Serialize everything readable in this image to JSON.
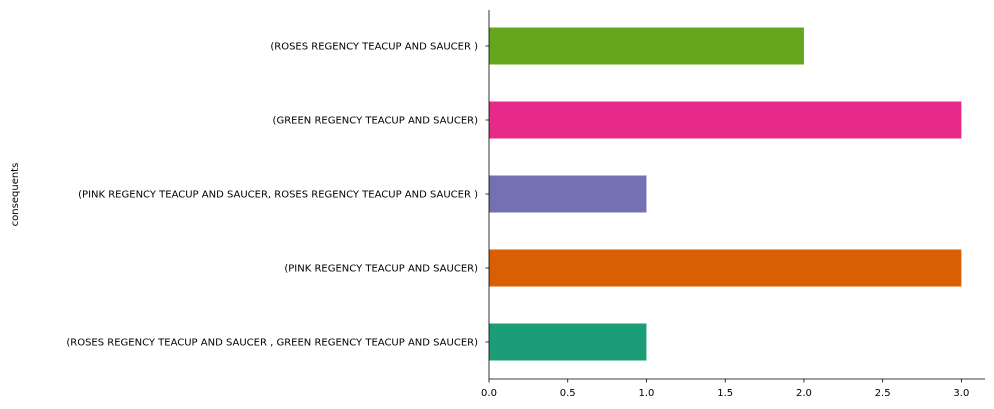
{
  "chart_data": {
    "type": "bar",
    "orientation": "horizontal",
    "categories": [
      "(ROSES REGENCY TEACUP AND SAUCER )",
      "(GREEN REGENCY TEACUP AND SAUCER)",
      "(PINK REGENCY TEACUP AND SAUCER, ROSES REGENCY TEACUP AND SAUCER )",
      "(PINK REGENCY TEACUP AND SAUCER)",
      "(ROSES REGENCY TEACUP AND SAUCER , GREEN REGENCY TEACUP AND SAUCER)"
    ],
    "values": [
      2,
      3,
      1,
      3,
      1
    ],
    "colors": [
      "#66a61e",
      "#e7298a",
      "#7570b3",
      "#d95f02",
      "#1b9e77"
    ],
    "title": "",
    "xlabel": "",
    "ylabel": "consequents",
    "xlim": [
      0,
      3.15
    ],
    "xticks": [
      0.0,
      0.5,
      1.0,
      1.5,
      2.0,
      2.5,
      3.0
    ],
    "xtick_labels": [
      "0.0",
      "0.5",
      "1.0",
      "1.5",
      "2.0",
      "2.5",
      "3.0"
    ],
    "grid": false,
    "legend": "none",
    "spines": [
      "left",
      "bottom"
    ]
  }
}
